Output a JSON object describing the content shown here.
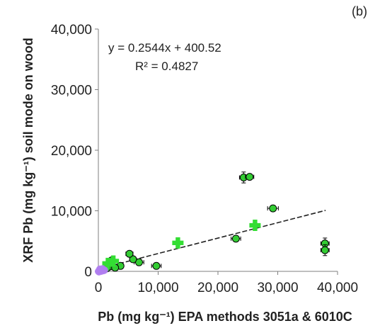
{
  "chart_data": {
    "type": "scatter",
    "panel_label": "(b)",
    "xlabel": "Pb (mg kg⁻¹) EPA methods 3051a & 6010C",
    "ylabel": "XRF Pb (mg kg⁻¹) soil mode on wood",
    "xlim": [
      0,
      40000
    ],
    "ylim": [
      0,
      40000
    ],
    "xticks": [
      0,
      10000,
      20000,
      30000,
      40000
    ],
    "yticks": [
      0,
      10000,
      20000,
      30000,
      40000
    ],
    "xtick_labels": [
      "0",
      "10,000",
      "20,000",
      "30,000",
      "40,000"
    ],
    "ytick_labels": [
      "0",
      "10,000",
      "20,000",
      "30,000",
      "40,000"
    ],
    "grid": false,
    "trendline": {
      "equation": "y = 0.2544x + 400.52",
      "r_squared": "R² = 0.4827",
      "slope": 0.2544,
      "intercept": 400.52,
      "x_range": [
        0,
        38000
      ]
    },
    "series": [
      {
        "marker": "circle",
        "color": "#33cc33",
        "points": [
          {
            "x": 24300,
            "y": 15500,
            "xerr": 700,
            "yerr": 900
          },
          {
            "x": 25300,
            "y": 15600,
            "xerr": 700,
            "yerr": 0
          },
          {
            "x": 29200,
            "y": 10400,
            "xerr": 900,
            "yerr": 0
          },
          {
            "x": 23000,
            "y": 5400,
            "xerr": 800,
            "yerr": 0
          },
          {
            "x": 37900,
            "y": 4600,
            "xerr": 700,
            "yerr": 900
          },
          {
            "x": 37900,
            "y": 3500,
            "xerr": 700,
            "yerr": 900
          },
          {
            "x": 9700,
            "y": 900,
            "xerr": 800,
            "yerr": 0
          },
          {
            "x": 6800,
            "y": 1500,
            "xerr": 800,
            "yerr": 0
          },
          {
            "x": 5800,
            "y": 2000,
            "xerr": 500,
            "yerr": 0
          },
          {
            "x": 5200,
            "y": 2900,
            "xerr": 600,
            "yerr": 0
          },
          {
            "x": 2200,
            "y": 1800,
            "xerr": 400,
            "yerr": 0
          },
          {
            "x": 3700,
            "y": 900,
            "xerr": 500,
            "yerr": 0
          },
          {
            "x": 1900,
            "y": 800,
            "xerr": 300,
            "yerr": 0
          },
          {
            "x": 1400,
            "y": 500,
            "xerr": 300,
            "yerr": 0
          },
          {
            "x": 2800,
            "y": 600,
            "xerr": 300,
            "yerr": 0
          }
        ]
      },
      {
        "marker": "plus",
        "color": "#33dd33",
        "points": [
          {
            "x": 13300,
            "y": 4700
          },
          {
            "x": 26200,
            "y": 7600
          },
          {
            "x": 1600,
            "y": 1300
          },
          {
            "x": 2500,
            "y": 1700
          }
        ]
      },
      {
        "marker": "circle",
        "color": "#b07ef0",
        "points": [
          {
            "x": 0,
            "y": 0
          },
          {
            "x": 150,
            "y": 200
          },
          {
            "x": 300,
            "y": 100
          },
          {
            "x": 450,
            "y": 300
          },
          {
            "x": 600,
            "y": 150
          },
          {
            "x": 750,
            "y": 250
          },
          {
            "x": 900,
            "y": 100
          },
          {
            "x": 250,
            "y": 400
          },
          {
            "x": 500,
            "y": 0
          },
          {
            "x": 1050,
            "y": 200
          },
          {
            "x": 100,
            "y": -100
          },
          {
            "x": 700,
            "y": 450
          }
        ]
      }
    ]
  }
}
